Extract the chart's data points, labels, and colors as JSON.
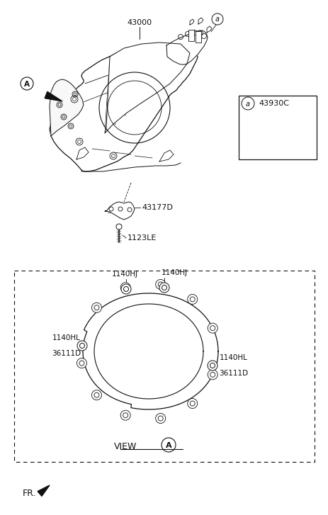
{
  "bg_color": "#ffffff",
  "fig_width": 4.64,
  "fig_height": 7.27,
  "dpi": 100,
  "main_part_label": "43000",
  "bracket_label": "43177D",
  "bolt_label": "1123LE",
  "callout_part_label": "43930C",
  "view_label": "VIEW",
  "view_callout": "A",
  "label_A_main": "A",
  "fr_label": "FR.",
  "circle_labels_top_left": "1140HJ",
  "circle_labels_top_right": "1140HJ",
  "circle_labels_left": [
    "1140HL",
    "36111D"
  ],
  "circle_labels_right": [
    "1140HL",
    "36111D"
  ],
  "transaxle_color": "#111111",
  "line_color": "#111111"
}
